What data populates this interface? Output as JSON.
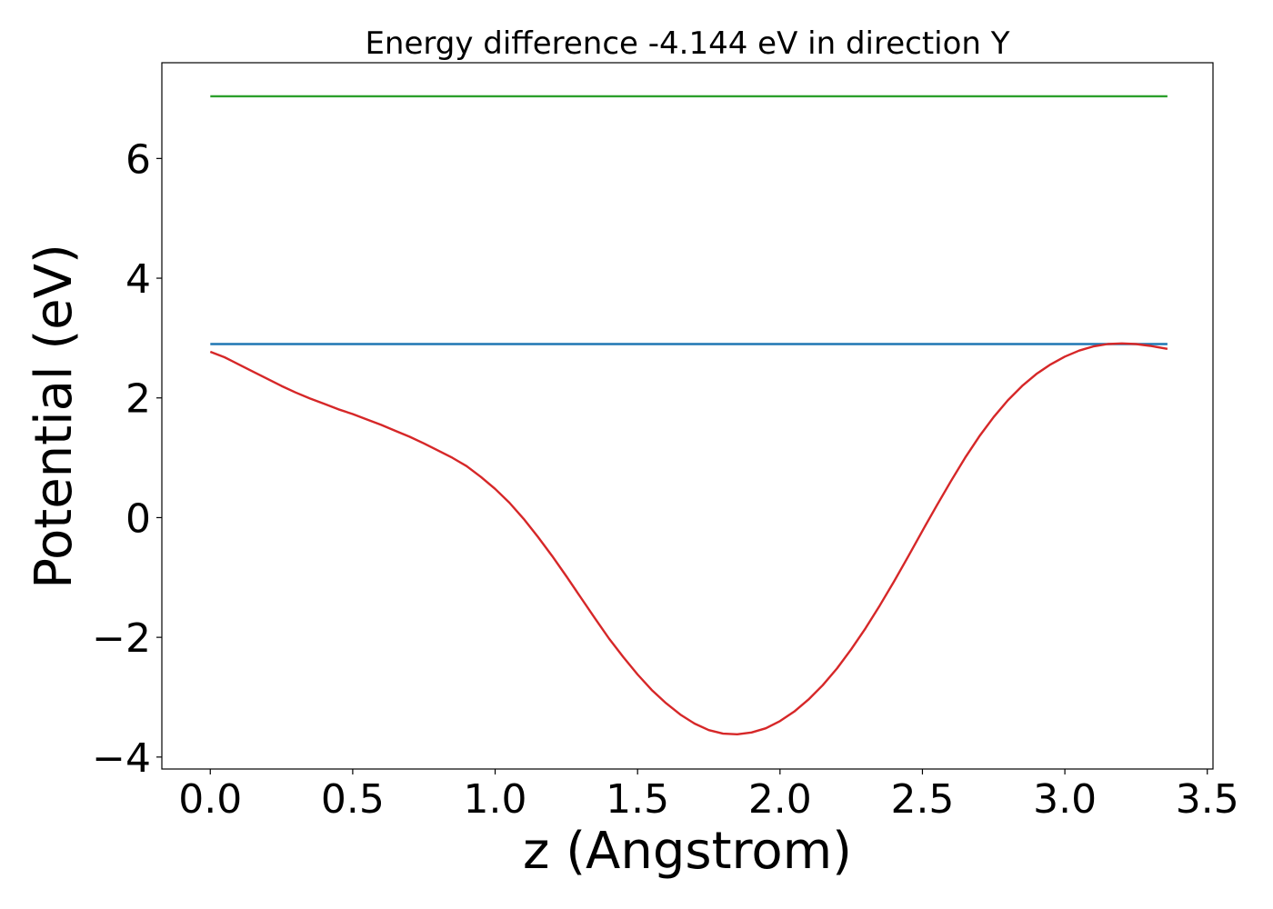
{
  "chart_data": {
    "type": "line",
    "title": "Energy difference -4.144 eV in direction Y",
    "xlabel": "z (Angstrom)",
    "ylabel": "Potential (eV)",
    "xlim": [
      -0.17,
      3.52
    ],
    "ylim": [
      -4.2,
      7.6
    ],
    "xticks": [
      0.0,
      0.5,
      1.0,
      1.5,
      2.0,
      2.5,
      3.0,
      3.5
    ],
    "xtick_labels": [
      "0.0",
      "0.5",
      "1.0",
      "1.5",
      "2.0",
      "2.5",
      "3.0",
      "3.5"
    ],
    "yticks": [
      -4,
      -2,
      0,
      2,
      4,
      6
    ],
    "ytick_labels": [
      "−4",
      "−2",
      "0",
      "2",
      "4",
      "6"
    ],
    "grid": false,
    "series": [
      {
        "color": "#2ca02c",
        "x": [
          0.0,
          3.36
        ],
        "y": [
          7.04,
          7.04
        ]
      },
      {
        "color": "#1f77b4",
        "x": [
          0.0,
          3.36
        ],
        "y": [
          2.9,
          2.9
        ]
      },
      {
        "color": "#d62728",
        "x": [
          0.0,
          0.05,
          0.1,
          0.15,
          0.2,
          0.25,
          0.3,
          0.35,
          0.4,
          0.45,
          0.5,
          0.55,
          0.6,
          0.65,
          0.7,
          0.75,
          0.8,
          0.85,
          0.9,
          0.95,
          1.0,
          1.05,
          1.1,
          1.15,
          1.2,
          1.25,
          1.3,
          1.35,
          1.4,
          1.45,
          1.5,
          1.55,
          1.6,
          1.65,
          1.7,
          1.75,
          1.8,
          1.85,
          1.9,
          1.95,
          2.0,
          2.05,
          2.1,
          2.15,
          2.2,
          2.25,
          2.3,
          2.35,
          2.4,
          2.45,
          2.5,
          2.55,
          2.6,
          2.65,
          2.7,
          2.75,
          2.8,
          2.85,
          2.9,
          2.95,
          3.0,
          3.05,
          3.1,
          3.15,
          3.2,
          3.25,
          3.3,
          3.36
        ],
        "y": [
          2.77,
          2.68,
          2.56,
          2.44,
          2.32,
          2.2,
          2.09,
          1.99,
          1.9,
          1.81,
          1.73,
          1.64,
          1.55,
          1.45,
          1.35,
          1.24,
          1.12,
          1.0,
          0.86,
          0.68,
          0.48,
          0.25,
          -0.02,
          -0.32,
          -0.64,
          -0.98,
          -1.33,
          -1.68,
          -2.02,
          -2.33,
          -2.62,
          -2.88,
          -3.1,
          -3.29,
          -3.44,
          -3.55,
          -3.61,
          -3.62,
          -3.59,
          -3.52,
          -3.4,
          -3.24,
          -3.04,
          -2.8,
          -2.52,
          -2.2,
          -1.85,
          -1.47,
          -1.07,
          -0.65,
          -0.22,
          0.2,
          0.61,
          1.0,
          1.36,
          1.68,
          1.96,
          2.2,
          2.4,
          2.56,
          2.69,
          2.79,
          2.86,
          2.9,
          2.91,
          2.9,
          2.87,
          2.82
        ]
      }
    ]
  }
}
